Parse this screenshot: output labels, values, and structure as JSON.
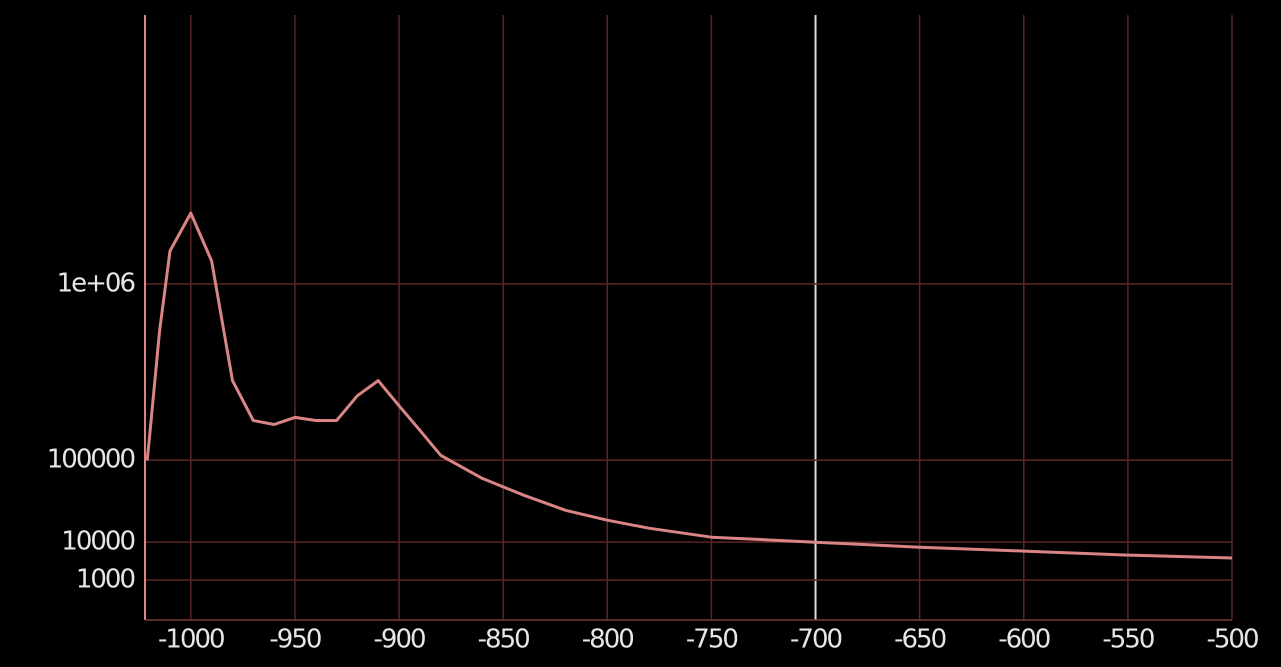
{
  "chart_data": {
    "type": "line",
    "yscale": "cube-root",
    "grid": true,
    "highlight_x": -700,
    "xlim": [
      -1022,
      -500
    ],
    "xticks": [
      -1000,
      -950,
      -900,
      -850,
      -800,
      -750,
      -700,
      -650,
      -600,
      -550,
      -500
    ],
    "ylim": [
      0,
      6000000
    ],
    "yticks": [
      {
        "value": 1000000,
        "label": "1e+06"
      },
      100000,
      10000,
      1000
    ],
    "series": [
      {
        "color": "#d98585",
        "x": [
          -1021,
          -1020,
          -1015,
          -1010,
          -1000,
          -990,
          -980,
          -970,
          -960,
          -950,
          -940,
          -930,
          -920,
          -910,
          -900,
          -890,
          -880,
          -860,
          -840,
          -820,
          -800,
          -780,
          -750,
          -700,
          -650,
          -600,
          -550,
          -500
        ],
        "values": [
          99700,
          144000,
          631000,
          1331000,
          1794000,
          1225000,
          352000,
          200000,
          188000,
          210000,
          200000,
          200000,
          288000,
          352000,
          250000,
          171000,
          110000,
          68400,
          45800,
          30400,
          22400,
          17100,
          12200,
          9940,
          8000,
          6640,
          5450,
          4660
        ]
      }
    ]
  }
}
